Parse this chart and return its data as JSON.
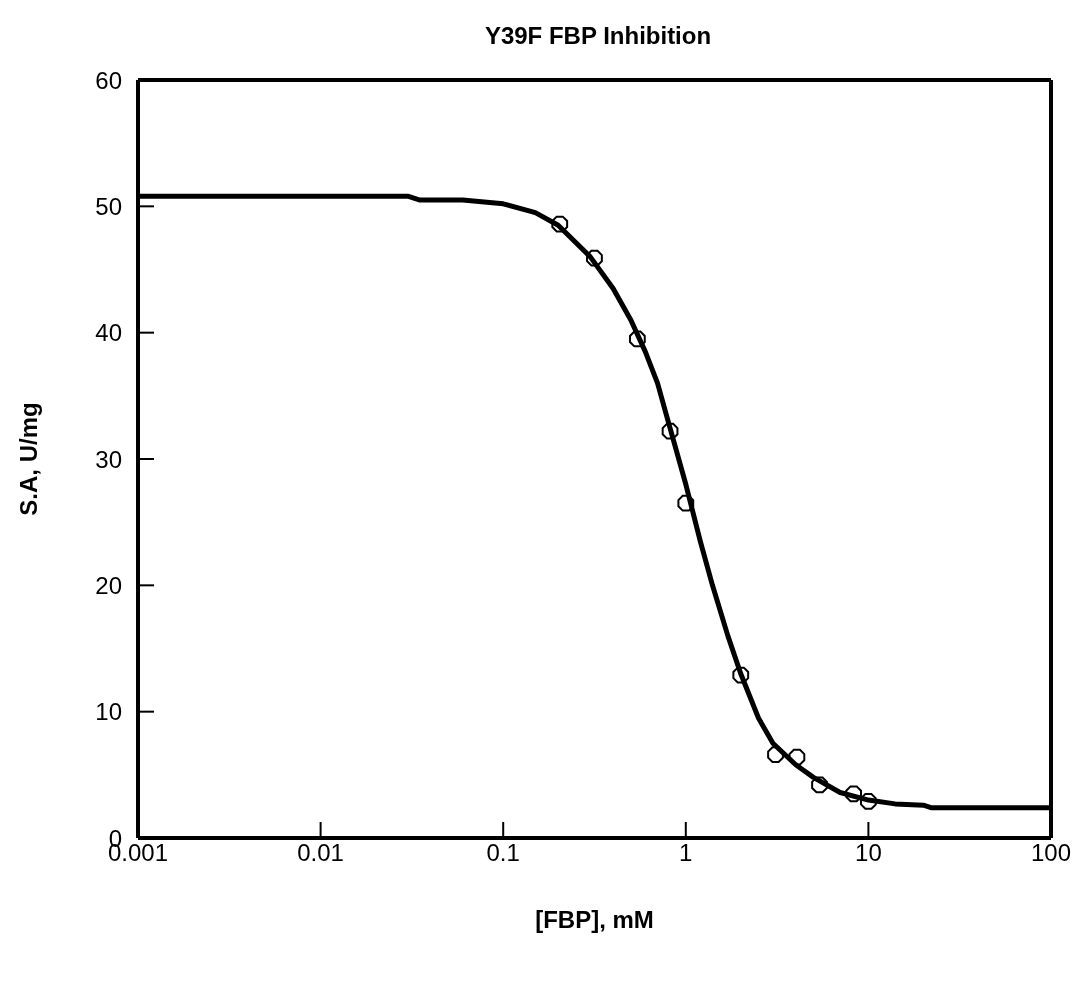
{
  "chart_data": {
    "type": "scatter",
    "title": "Y39F FBP Inhibition",
    "xlabel": "[FBP], mM",
    "ylabel": "S.A, U/mg",
    "log": "x",
    "xlim": [
      0.001,
      100
    ],
    "xticks": [
      0.001,
      0.01,
      0.1,
      1,
      10,
      100
    ],
    "ylim": [
      0,
      60
    ],
    "yticks": [
      0,
      10,
      20,
      30,
      40,
      50,
      60
    ],
    "series": [
      {
        "color": "#000000",
        "marker": "circle",
        "x": [
          0.204,
          0.316,
          0.543,
          0.82,
          1.0,
          2.0,
          3.1,
          4.06,
          5.4,
          8.3,
          10
        ],
        "values": [
          48.6,
          45.9,
          39.5,
          32.2,
          26.5,
          12.9,
          6.6,
          6.4,
          4.2,
          3.5,
          2.9
        ]
      },
      {
        "type": "line",
        "color": "#000000",
        "marker": "none",
        "line_style": "solid",
        "x": [
          0.001,
          0.03,
          0.035,
          0.06,
          0.1,
          0.15,
          0.2,
          0.3,
          0.4,
          0.5,
          0.6,
          0.7,
          0.8,
          1,
          1.2,
          1.4,
          1.7,
          2,
          2.5,
          3,
          4,
          5,
          7,
          10,
          14,
          20,
          22,
          100
        ],
        "values": [
          50.8,
          50.8,
          50.5,
          50.5,
          50.2,
          49.5,
          48.5,
          46,
          43.5,
          41,
          38.5,
          36,
          33,
          28,
          23.5,
          20,
          16,
          13,
          9.5,
          7.5,
          5.8,
          4.8,
          3.6,
          3.0,
          2.7,
          2.6,
          2.4,
          2.4
        ]
      }
    ]
  }
}
